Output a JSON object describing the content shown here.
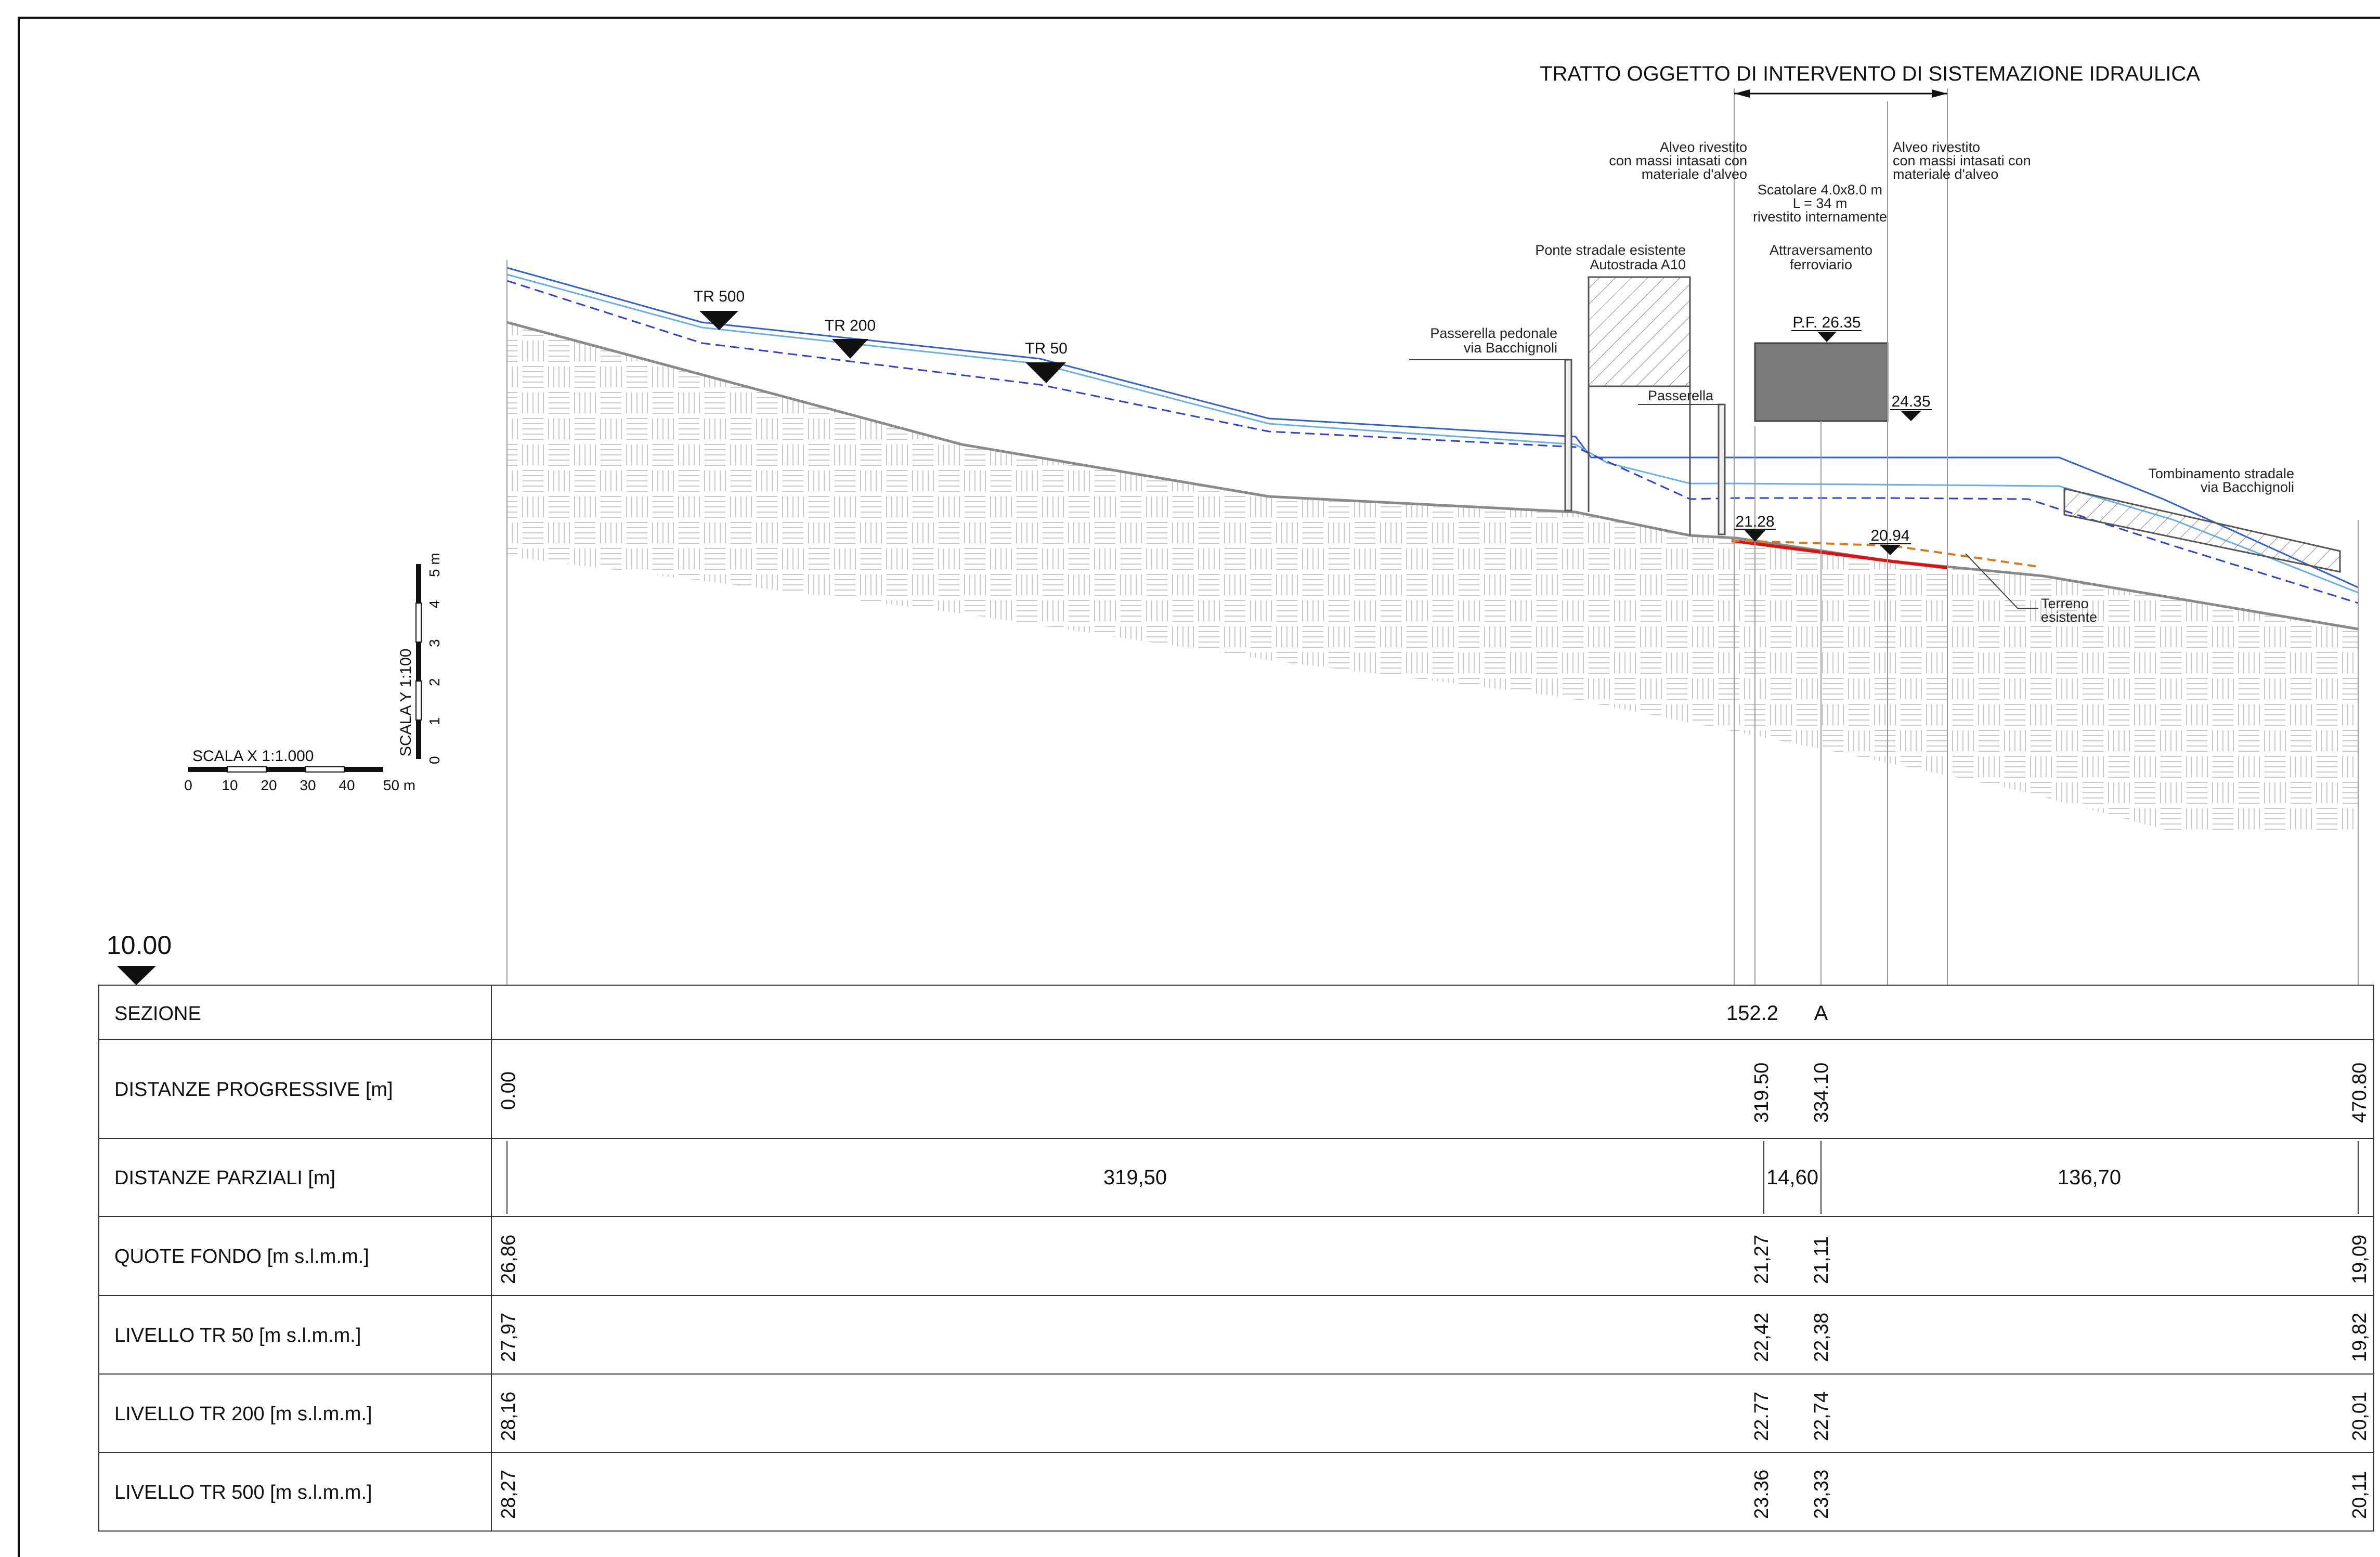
{
  "title": "TRATTO OGGETTO DI INTERVENTO DI SISTEMAZIONE IDRAULICA",
  "annotations": {
    "alveo_left": [
      "Alveo rivestito",
      "con massi intasati con",
      "materiale d'alveo"
    ],
    "alveo_right": [
      "Alveo rivestito",
      "con massi intasati con",
      "materiale d'alveo"
    ],
    "scatolare": [
      "Scatolare 4.0x8.0 m",
      "L = 34 m",
      "rivestito internamente"
    ],
    "ponte": [
      "Ponte stradale esistente",
      "Autostrada A10"
    ],
    "attraversamento": [
      "Attraversamento",
      "ferroviario"
    ],
    "passerella_pedonale": [
      "Passerella pedonale",
      "via Bacchignoli"
    ],
    "passerella": "Passerella",
    "pf": "P.F. 26.35",
    "quota_2435": "24.35",
    "quota_2128": "21.28",
    "quota_2094": "20.94",
    "tombinamento": [
      "Tombinamento stradale",
      "via Bacchignoli"
    ],
    "terreno": [
      "Terreno",
      "esistente"
    ],
    "tr500": "TR 500",
    "tr200": "TR 200",
    "tr50": "TR 50"
  },
  "scales": {
    "x_label": "SCALA X  1:1.000",
    "x_ticks": [
      "0",
      "10",
      "20",
      "30",
      "40",
      "50 m"
    ],
    "y_label": "SCALA Y  1:100",
    "y_ticks": [
      "0",
      "1",
      "2",
      "3",
      "4",
      "5 m"
    ]
  },
  "datum": "10.00",
  "table": {
    "section_value": "152.2",
    "section_letter": "A",
    "row_labels": [
      "SEZIONE",
      "DISTANZE PROGRESSIVE [m]",
      "DISTANZE PARZIALI [m]",
      "QUOTE FONDO [m s.l.m.m.]",
      "LIVELLO TR 50 [m s.l.m.m.]",
      "LIVELLO TR 200 [m s.l.m.m.]",
      "LIVELLO TR 500 [m s.l.m.m.]"
    ],
    "progressive": [
      "0.00",
      "319.50",
      "334.10",
      "470.80"
    ],
    "partial": [
      "319,50",
      "14,60",
      "136,70"
    ],
    "quote_fondo": [
      "26,86",
      "21,27",
      "21,11",
      "19,09"
    ],
    "tr50": [
      "27,97",
      "22,42",
      "22,38",
      "19,82"
    ],
    "tr200": [
      "28,16",
      "22.77",
      "22,74",
      "20,01"
    ],
    "tr500": [
      "28,27",
      "23.36",
      "23,33",
      "20,11"
    ]
  },
  "colors": {
    "line": "#1a1a1a",
    "ground": "#8a8a8a",
    "hatch": "#c8c8c8",
    "water_tr500": "#2f5fd0",
    "water_tr200": "#6aaee8",
    "water_tr50": "#2f3fd0",
    "bed_new": "#e01010",
    "bed_old": "#d97a1a",
    "culvert": "#7a7a7a"
  }
}
